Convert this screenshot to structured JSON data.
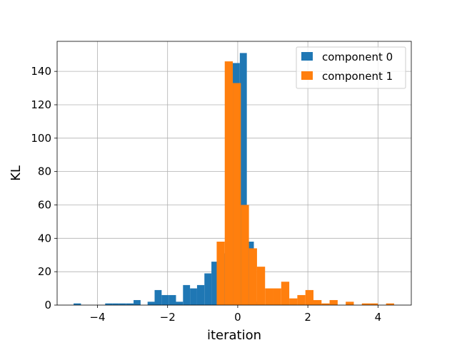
{
  "chart_data": {
    "type": "histogram",
    "xlabel": "iteration",
    "ylabel": "KL",
    "xlim": [
      -5.15,
      4.95
    ],
    "ylim": [
      0,
      158
    ],
    "grid": true,
    "legend_position": "top-right",
    "x_ticks": [
      {
        "value": -4,
        "label": "−4"
      },
      {
        "value": -2,
        "label": "−2"
      },
      {
        "value": 0,
        "label": "0"
      },
      {
        "value": 2,
        "label": "2"
      },
      {
        "value": 4,
        "label": "4"
      }
    ],
    "y_ticks": [
      {
        "value": 0,
        "label": "0"
      },
      {
        "value": 20,
        "label": "20"
      },
      {
        "value": 40,
        "label": "40"
      },
      {
        "value": 60,
        "label": "60"
      },
      {
        "value": 80,
        "label": "80"
      },
      {
        "value": 100,
        "label": "100"
      },
      {
        "value": 120,
        "label": "120"
      },
      {
        "value": 140,
        "label": "140"
      }
    ],
    "series": [
      {
        "name": "component 0",
        "color": "#1f77b4",
        "bins": [
          [
            -4.68,
            -4.47,
            1
          ],
          [
            -3.78,
            -3.58,
            1
          ],
          [
            -3.58,
            -3.38,
            1
          ],
          [
            -3.38,
            -3.18,
            1
          ],
          [
            -3.18,
            -2.97,
            1
          ],
          [
            -2.97,
            -2.77,
            3
          ],
          [
            -2.57,
            -2.37,
            2
          ],
          [
            -2.37,
            -2.17,
            9
          ],
          [
            -2.17,
            -1.96,
            6
          ],
          [
            -1.96,
            -1.76,
            6
          ],
          [
            -1.76,
            -1.56,
            2
          ],
          [
            -1.56,
            -1.36,
            12
          ],
          [
            -1.36,
            -1.16,
            10
          ],
          [
            -1.16,
            -0.95,
            12
          ],
          [
            -0.95,
            -0.75,
            19
          ],
          [
            -0.75,
            -0.55,
            26
          ],
          [
            -0.55,
            -0.35,
            31
          ],
          [
            -0.35,
            -0.15,
            44
          ],
          [
            -0.15,
            0.06,
            145
          ],
          [
            0.06,
            0.26,
            151
          ],
          [
            0.26,
            0.46,
            38
          ],
          [
            0.46,
            0.66,
            2
          ]
        ]
      },
      {
        "name": "component 1",
        "color": "#ff7f0e",
        "bins": [
          [
            -0.6,
            -0.37,
            38
          ],
          [
            -0.37,
            -0.14,
            146
          ],
          [
            -0.14,
            0.09,
            133
          ],
          [
            0.09,
            0.32,
            60
          ],
          [
            0.32,
            0.55,
            34
          ],
          [
            0.55,
            0.78,
            23
          ],
          [
            0.78,
            1.01,
            10
          ],
          [
            1.01,
            1.24,
            10
          ],
          [
            1.24,
            1.47,
            14
          ],
          [
            1.47,
            1.7,
            4
          ],
          [
            1.7,
            1.93,
            6
          ],
          [
            1.93,
            2.16,
            9
          ],
          [
            2.16,
            2.39,
            3
          ],
          [
            2.39,
            2.62,
            1
          ],
          [
            2.62,
            2.85,
            3
          ],
          [
            3.08,
            3.31,
            2
          ],
          [
            3.54,
            3.77,
            1
          ],
          [
            3.77,
            4.0,
            1
          ],
          [
            4.23,
            4.46,
            1
          ]
        ]
      }
    ]
  }
}
